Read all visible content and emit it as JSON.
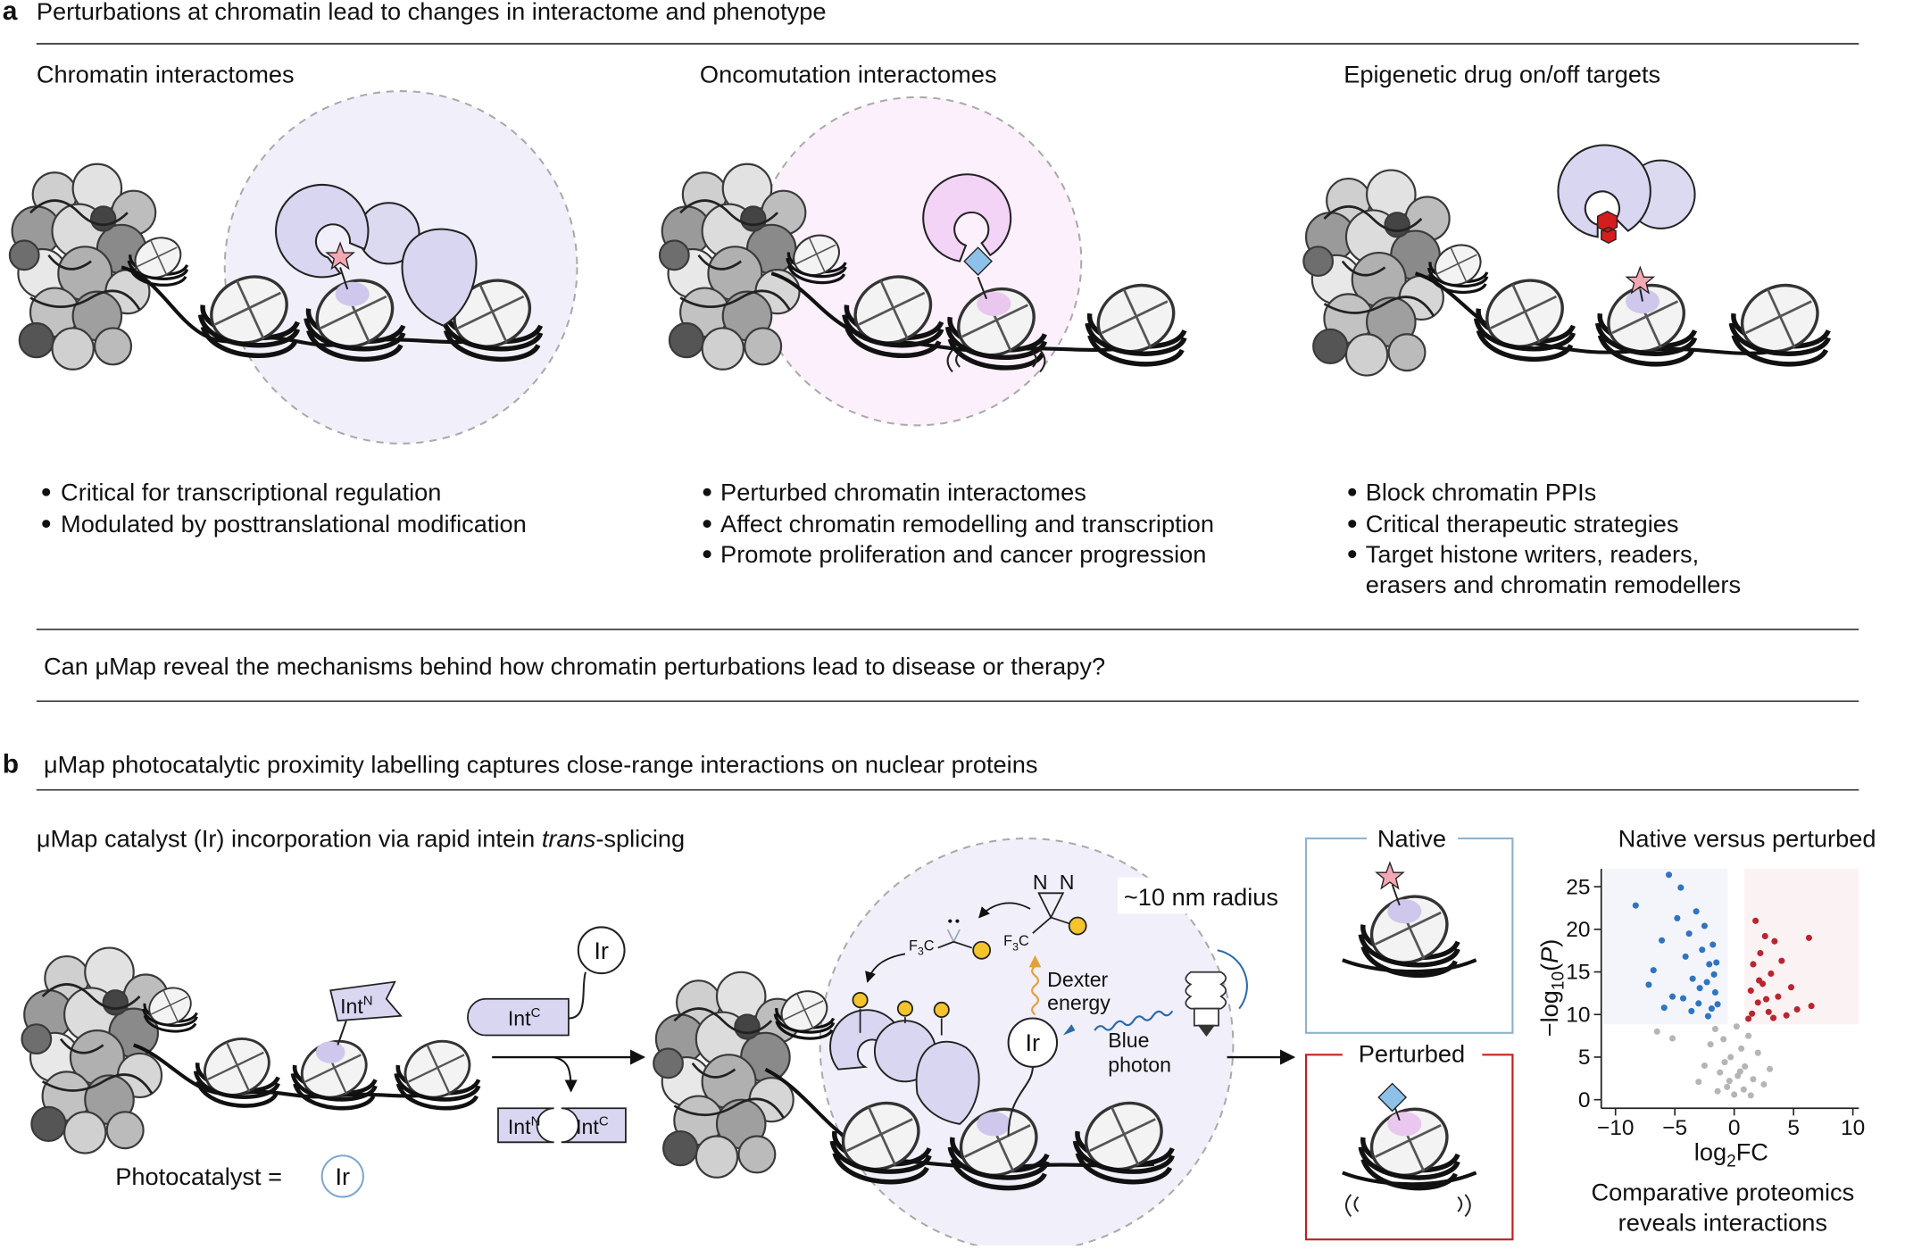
{
  "panel_a": {
    "label": "a",
    "title": "Perturbations at chromatin lead to changes in interactome and phenotype",
    "columns": [
      {
        "heading": "Chromatin interactomes",
        "bullets": [
          "Critical for transcriptional regulation",
          "Modulated by posttranslational modification"
        ]
      },
      {
        "heading": "Oncomutation interactomes",
        "bullets": [
          "Perturbed chromatin interactomes",
          "Affect chromatin remodelling and transcription",
          "Promote proliferation and cancer progression"
        ]
      },
      {
        "heading": "Epigenetic drug on/off targets",
        "bullets": [
          "Block chromatin PPIs",
          "Critical therapeutic strategies",
          "Target histone writers, readers,",
          "erasers and chromatin remodellers"
        ]
      }
    ],
    "question": "Can μMap reveal the mechanisms behind how chromatin perturbations lead to disease or therapy?"
  },
  "panel_b": {
    "label": "b",
    "title": "μMap photocatalytic proximity labelling captures close-range interactions on nuclear proteins",
    "subtitle": {
      "pre": "μMap catalyst (Ir) incorporation via rapid intein ",
      "italic": "trans",
      "post": "-splicing"
    },
    "photocatalyst_label": "Photocatalyst =",
    "catalyst": "Ir",
    "intein_n": {
      "base": "Int",
      "sup": "N"
    },
    "intein_c": {
      "base": "Int",
      "sup": "C"
    },
    "radius_label": "~10 nm radius",
    "dexter_label": [
      "Dexter",
      "energy"
    ],
    "photon_label": [
      "Blue",
      "photon"
    ],
    "cf3": {
      "pre": "F",
      "sub": "3",
      "post": "C"
    },
    "diazirine": "N",
    "states": [
      "Native",
      "Perturbed"
    ],
    "volcano": {
      "title": "Native versus perturbed",
      "ylabel": {
        "pre": "−log",
        "sub": "10",
        "open": "(",
        "italic": "P",
        "close": ")"
      },
      "xlabel": {
        "pre": "log",
        "sub": "2",
        "post": "FC"
      },
      "xlim": [
        -11.2,
        10.5
      ],
      "ylim": [
        -1,
        27.1
      ],
      "xticks": [
        {
          "value": -10,
          "label": "−10"
        },
        {
          "value": -5,
          "label": "−5"
        },
        0,
        5,
        10
      ],
      "yticks": [
        0,
        5,
        10,
        15,
        20,
        25
      ],
      "series": [
        {
          "color": "#2f74c0",
          "x": [
            -8.3,
            -7.2,
            -6.8,
            -6.1,
            -5.5,
            -5.2,
            -4.8,
            -4.5,
            -4.1,
            -3.8,
            -3.5,
            -3.2,
            -3.0,
            -2.7,
            -2.5,
            -2.3,
            -2.1,
            -1.9,
            -1.8,
            -1.6,
            -1.5,
            -1.4,
            -5.9,
            -4.3,
            -3.6,
            -2.9,
            -2.2,
            -1.7
          ],
          "y": [
            22.8,
            13.5,
            15.2,
            18.7,
            26.4,
            12.1,
            21.3,
            24.9,
            16.8,
            19.5,
            14.2,
            22.1,
            11.3,
            17.6,
            20.4,
            13.8,
            15.9,
            10.7,
            18.2,
            12.6,
            16.1,
            11.2,
            10.8,
            11.9,
            10.4,
            13.1,
            9.8,
            14.7
          ]
        },
        {
          "color": "#b8262e",
          "x": [
            1.2,
            1.4,
            1.6,
            1.8,
            2.0,
            2.2,
            2.4,
            2.6,
            2.9,
            3.1,
            3.4,
            3.7,
            4.0,
            4.4,
            4.8,
            5.3,
            6.3,
            6.5,
            1.5,
            2.1,
            2.7,
            3.3
          ],
          "y": [
            9.5,
            12.8,
            15.9,
            21.0,
            11.4,
            17.2,
            13.6,
            19.2,
            10.3,
            14.8,
            18.6,
            12.1,
            16.3,
            9.9,
            13.2,
            10.6,
            19.0,
            11.0,
            10.1,
            14.0,
            11.8,
            9.6
          ]
        },
        {
          "color": "#b5b5b5",
          "x": [
            -3.0,
            -2.5,
            -2.0,
            -1.6,
            -1.2,
            -0.9,
            -0.6,
            -0.3,
            0,
            0.3,
            0.6,
            0.9,
            1.2,
            1.6,
            2.0,
            2.5,
            3.0,
            -1.4,
            -0.8,
            0.2,
            0.8,
            1.4,
            -0.4,
            0.5,
            -6.5,
            -5.2
          ],
          "y": [
            2.1,
            4.0,
            6.5,
            8.3,
            3.2,
            7.1,
            1.5,
            5.0,
            0.6,
            2.8,
            6.0,
            3.9,
            7.5,
            2.4,
            5.5,
            1.8,
            3.6,
            1.0,
            4.4,
            8.6,
            1.2,
            0.5,
            2.2,
            3.3,
            8.0,
            7.2
          ]
        }
      ]
    },
    "caption": [
      "Comparative proteomics",
      "reveals interactions"
    ]
  }
}
